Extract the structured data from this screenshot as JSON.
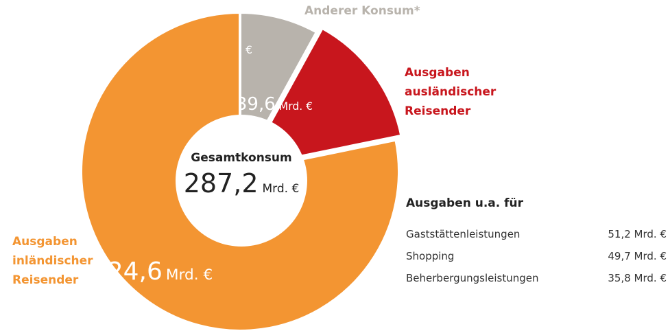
{
  "chart_data": {
    "type": "donut",
    "categories": [
      "Anderer Konsum*",
      "Ausgaben ausländischer Reisender",
      "Ausgaben inländischer Reisender"
    ],
    "values": [
      23.0,
      39.6,
      224.6
    ],
    "value_labels": [
      "23,0",
      "39,6",
      "224,6"
    ],
    "unit": "Mrd. €",
    "colors": [
      "#b8b3ac",
      "#c8161d",
      "#f39532"
    ],
    "center_title": "Gesamtkonsum",
    "center_label": "287,2",
    "side_title": "Ausgaben u.a. für",
    "side_rows": [
      {
        "name": "Gaststättenleistungen",
        "value": "51,2 Mrd. €"
      },
      {
        "name": "Shopping",
        "value": "49,7 Mrd. €"
      },
      {
        "name": "Beherbergungsleistungen",
        "value": "35,8 Mrd. €"
      }
    ]
  }
}
